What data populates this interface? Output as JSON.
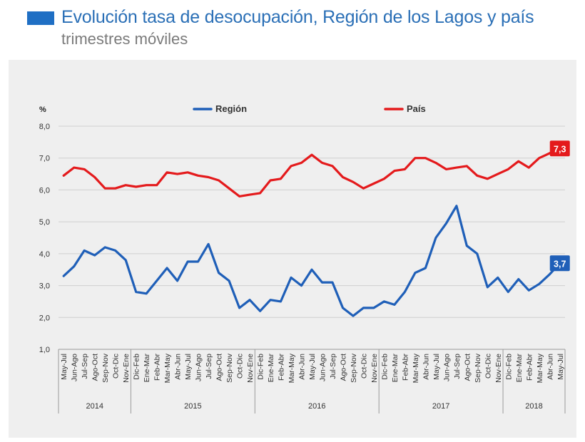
{
  "header": {
    "title": "Evolución tasa de desocupación, Región de los Lagos y país",
    "subtitle": "trimestres móviles"
  },
  "colors": {
    "region": "#1f5fb8",
    "pais": "#e41a1c",
    "accent": "#1f6fc4"
  },
  "chart_data": {
    "type": "line",
    "ylabel": "%",
    "ylim": [
      1.0,
      8.0
    ],
    "yticks": [
      "8,0",
      "7,0",
      "6,0",
      "5,0",
      "4,0",
      "3,0",
      "2,0",
      "1,0"
    ],
    "grid": true,
    "legend_position": "top",
    "categories": [
      "May-Jul",
      "Jun-Ago",
      "Jul-Sep",
      "Ago-Oct",
      "Sep-Nov",
      "Oct-Dic",
      "Nov-Ene",
      "Dic-Feb",
      "Ene-Mar",
      "Feb-Abr",
      "Mar-May",
      "Abr-Jun",
      "May-Jul",
      "Jun-Ago",
      "Jul-Sep",
      "Ago-Oct",
      "Sep-Nov",
      "Oct-Dic",
      "Nov-Ene",
      "Dic-Feb",
      "Ene-Mar",
      "Feb-Abr",
      "Mar-May",
      "Abr-Jun",
      "May-Jul",
      "Jun-Ago",
      "Jul-Sep",
      "Ago-Oct",
      "Sep-Nov",
      "Oct-Dic",
      "Nov-Ene",
      "Dic-Feb",
      "Ene-Mar",
      "Feb-Abr",
      "Mar-May",
      "Abr-Jun",
      "May-Jul",
      "Jun-Ago",
      "Jul-Sep",
      "Ago-Oct",
      "Sep-Nov",
      "Oct-Dic",
      "Nov-Ene",
      "Dic-Feb",
      "Ene-Mar",
      "Feb-Abr",
      "Mar-May",
      "Abr-Jun",
      "May-Jul"
    ],
    "year_groups": [
      {
        "label": "2014",
        "start": 0,
        "end": 6
      },
      {
        "label": "2015",
        "start": 7,
        "end": 18
      },
      {
        "label": "2016",
        "start": 19,
        "end": 30
      },
      {
        "label": "2017",
        "start": 31,
        "end": 42
      },
      {
        "label": "2018",
        "start": 43,
        "end": 48
      }
    ],
    "series": [
      {
        "name": "Región",
        "color": "#1f5fb8",
        "values": [
          3.3,
          3.6,
          4.1,
          3.95,
          4.2,
          4.1,
          3.8,
          2.8,
          2.75,
          3.15,
          3.55,
          3.15,
          3.75,
          3.75,
          4.3,
          3.4,
          3.15,
          2.3,
          2.55,
          2.2,
          2.55,
          2.5,
          3.25,
          3.0,
          3.5,
          3.1,
          3.1,
          2.3,
          2.05,
          2.3,
          2.3,
          2.5,
          2.4,
          2.8,
          3.4,
          3.55,
          4.5,
          4.95,
          5.5,
          4.25,
          4.0,
          2.95,
          3.25,
          2.8,
          3.2,
          2.85,
          3.05,
          3.35,
          3.7
        ],
        "end_label": "3,7"
      },
      {
        "name": "País",
        "color": "#e41a1c",
        "values": [
          6.45,
          6.7,
          6.65,
          6.4,
          6.05,
          6.05,
          6.15,
          6.1,
          6.15,
          6.15,
          6.55,
          6.5,
          6.55,
          6.45,
          6.4,
          6.3,
          6.05,
          5.8,
          5.85,
          5.9,
          6.3,
          6.35,
          6.75,
          6.85,
          7.1,
          6.85,
          6.75,
          6.4,
          6.25,
          6.05,
          6.2,
          6.35,
          6.6,
          6.65,
          7.0,
          7.0,
          6.85,
          6.65,
          6.7,
          6.75,
          6.45,
          6.35,
          6.5,
          6.65,
          6.9,
          6.7,
          7.0,
          7.15,
          7.3
        ],
        "end_label": "7,3"
      }
    ]
  }
}
